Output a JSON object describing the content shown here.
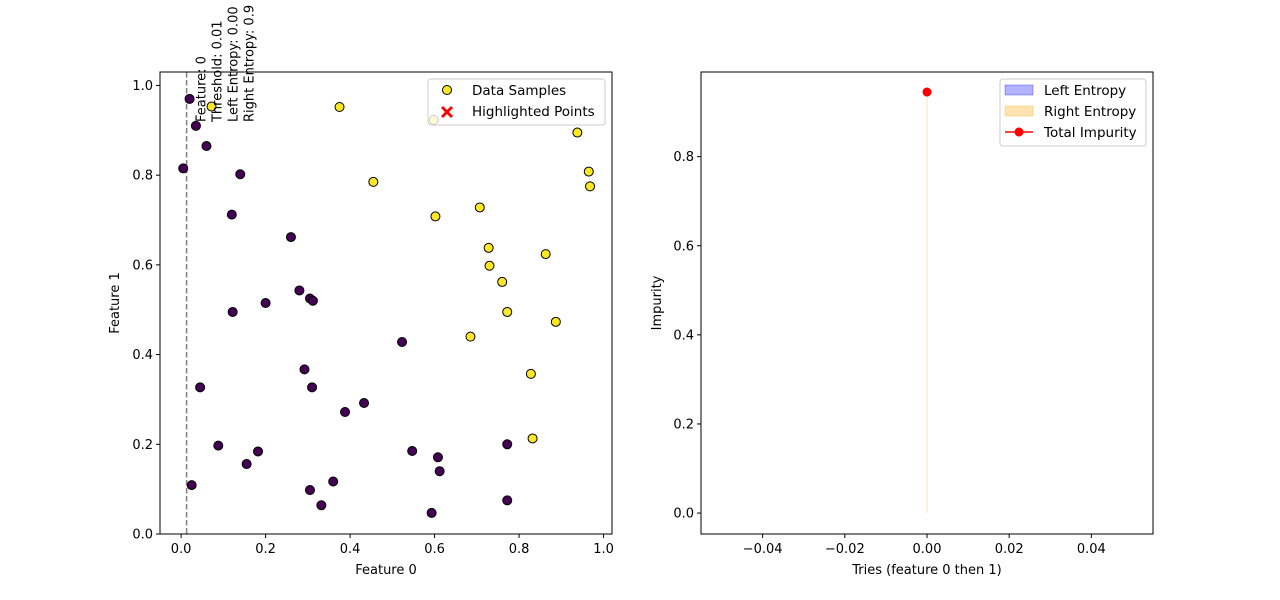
{
  "chart_data": [
    {
      "type": "scatter",
      "xlabel": "Feature 0",
      "ylabel": "Feature 1",
      "xlim": [
        -0.05,
        1.02
      ],
      "ylim": [
        0.0,
        1.03
      ],
      "xticks": [
        "0.0",
        "0.2",
        "0.4",
        "0.6",
        "0.8",
        "1.0"
      ],
      "xtick_values": [
        0.0,
        0.2,
        0.4,
        0.6,
        0.8,
        1.0
      ],
      "yticks": [
        "0.0",
        "0.2",
        "0.4",
        "0.6",
        "0.8",
        "1.0"
      ],
      "ytick_values": [
        0.0,
        0.2,
        0.4,
        0.6,
        0.8,
        1.0
      ],
      "threshold_line": {
        "x": 0.013,
        "style": "dashed",
        "color": "#808080"
      },
      "annotation": {
        "lines": [
          "Feature: 0",
          "Threshold: 0.01",
          "Left Entropy: 0.00",
          "Right Entropy: 0.9"
        ]
      },
      "legend": {
        "placement": "top-right",
        "entries": [
          {
            "label": "Data Samples",
            "marker": "circle",
            "color": "#fde725"
          },
          {
            "label": "Highlighted Points",
            "marker": "x",
            "color": "#ff0000"
          }
        ]
      },
      "class_colors": {
        "0": "#440154",
        "1": "#fde725"
      },
      "points": [
        {
          "x": 0.02,
          "y": 0.97,
          "c": 0
        },
        {
          "x": 0.035,
          "y": 0.91,
          "c": 0
        },
        {
          "x": 0.06,
          "y": 0.865,
          "c": 0
        },
        {
          "x": 0.005,
          "y": 0.815,
          "c": 0
        },
        {
          "x": 0.14,
          "y": 0.802,
          "c": 0
        },
        {
          "x": 0.12,
          "y": 0.712,
          "c": 0
        },
        {
          "x": 0.26,
          "y": 0.662,
          "c": 0
        },
        {
          "x": 0.28,
          "y": 0.543,
          "c": 0
        },
        {
          "x": 0.305,
          "y": 0.525,
          "c": 0
        },
        {
          "x": 0.312,
          "y": 0.52,
          "c": 0
        },
        {
          "x": 0.2,
          "y": 0.515,
          "c": 0
        },
        {
          "x": 0.122,
          "y": 0.495,
          "c": 0
        },
        {
          "x": 0.523,
          "y": 0.428,
          "c": 0
        },
        {
          "x": 0.292,
          "y": 0.367,
          "c": 0
        },
        {
          "x": 0.045,
          "y": 0.327,
          "c": 0
        },
        {
          "x": 0.31,
          "y": 0.327,
          "c": 0
        },
        {
          "x": 0.433,
          "y": 0.292,
          "c": 0
        },
        {
          "x": 0.388,
          "y": 0.272,
          "c": 0
        },
        {
          "x": 0.088,
          "y": 0.197,
          "c": 0
        },
        {
          "x": 0.182,
          "y": 0.184,
          "c": 0
        },
        {
          "x": 0.547,
          "y": 0.185,
          "c": 0
        },
        {
          "x": 0.608,
          "y": 0.171,
          "c": 0
        },
        {
          "x": 0.155,
          "y": 0.156,
          "c": 0
        },
        {
          "x": 0.612,
          "y": 0.14,
          "c": 0
        },
        {
          "x": 0.36,
          "y": 0.117,
          "c": 0
        },
        {
          "x": 0.025,
          "y": 0.109,
          "c": 0
        },
        {
          "x": 0.305,
          "y": 0.098,
          "c": 0
        },
        {
          "x": 0.332,
          "y": 0.064,
          "c": 0
        },
        {
          "x": 0.593,
          "y": 0.047,
          "c": 0
        },
        {
          "x": 0.772,
          "y": 0.075,
          "c": 0
        },
        {
          "x": 0.772,
          "y": 0.2,
          "c": 0
        },
        {
          "x": 0.072,
          "y": 0.953,
          "c": 1
        },
        {
          "x": 0.375,
          "y": 0.952,
          "c": 1
        },
        {
          "x": 0.598,
          "y": 0.923,
          "c": 1
        },
        {
          "x": 0.938,
          "y": 0.895,
          "c": 1
        },
        {
          "x": 0.965,
          "y": 0.808,
          "c": 1
        },
        {
          "x": 0.968,
          "y": 0.775,
          "c": 1
        },
        {
          "x": 0.455,
          "y": 0.785,
          "c": 1
        },
        {
          "x": 0.707,
          "y": 0.728,
          "c": 1
        },
        {
          "x": 0.602,
          "y": 0.708,
          "c": 1
        },
        {
          "x": 0.728,
          "y": 0.638,
          "c": 1
        },
        {
          "x": 0.863,
          "y": 0.624,
          "c": 1
        },
        {
          "x": 0.73,
          "y": 0.598,
          "c": 1
        },
        {
          "x": 0.76,
          "y": 0.562,
          "c": 1
        },
        {
          "x": 0.772,
          "y": 0.495,
          "c": 1
        },
        {
          "x": 0.887,
          "y": 0.473,
          "c": 1
        },
        {
          "x": 0.685,
          "y": 0.44,
          "c": 1
        },
        {
          "x": 0.828,
          "y": 0.357,
          "c": 1
        },
        {
          "x": 0.832,
          "y": 0.213,
          "c": 1
        }
      ]
    },
    {
      "type": "line",
      "xlabel": "Tries (feature 0 then 1)",
      "ylabel": "Impurity",
      "xlim": [
        -0.055,
        0.055
      ],
      "ylim": [
        -0.047,
        0.99
      ],
      "xticks": [
        "−0.04",
        "−0.02",
        "0.00",
        "0.02",
        "0.04"
      ],
      "xtick_values": [
        -0.04,
        -0.02,
        0.0,
        0.02,
        0.04
      ],
      "yticks": [
        "0.0",
        "0.2",
        "0.4",
        "0.6",
        "0.8"
      ],
      "ytick_values": [
        0.0,
        0.2,
        0.4,
        0.6,
        0.8
      ],
      "legend": {
        "placement": "top-right",
        "entries": [
          {
            "label": "Left Entropy",
            "marker": "patch",
            "color": "#0000ff"
          },
          {
            "label": "Right Entropy",
            "marker": "patch",
            "color": "#ffa500"
          },
          {
            "label": "Total Impurity",
            "marker": "line-dot",
            "color": "#ff0000"
          }
        ]
      },
      "series": [
        {
          "name": "Left Entropy",
          "type": "area",
          "x": [
            0
          ],
          "y": [
            0.0
          ]
        },
        {
          "name": "Right Entropy",
          "type": "area",
          "x": [
            0
          ],
          "y": [
            0.945
          ]
        },
        {
          "name": "Total Impurity",
          "type": "line",
          "x": [
            0
          ],
          "y": [
            0.945
          ]
        }
      ]
    }
  ]
}
